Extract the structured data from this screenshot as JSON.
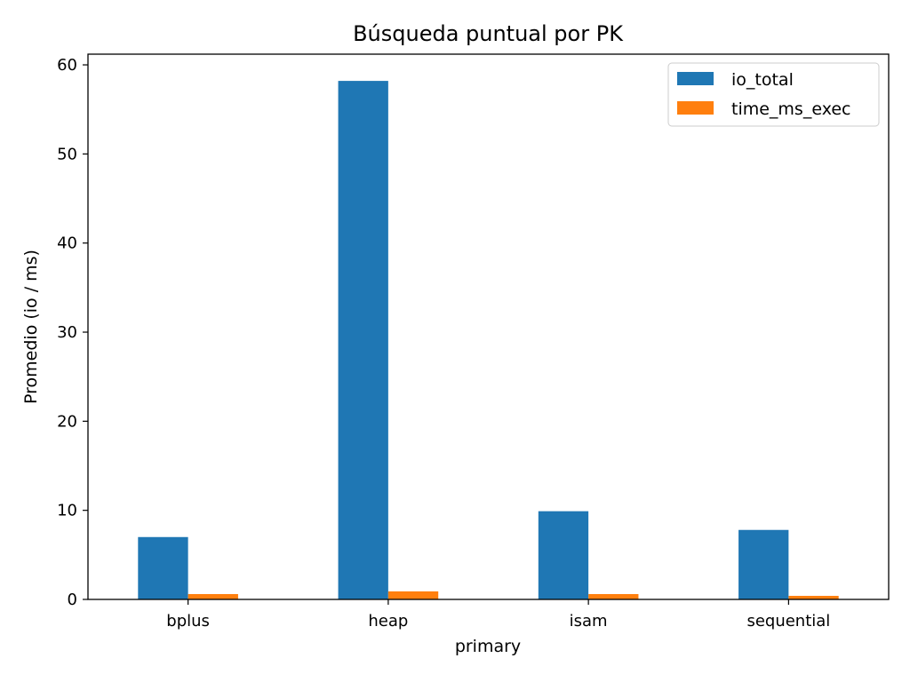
{
  "chart_data": {
    "type": "bar",
    "title": "Búsqueda puntual por PK",
    "xlabel": "primary",
    "ylabel": "Promedio (io / ms)",
    "categories": [
      "bplus",
      "heap",
      "isam",
      "sequential"
    ],
    "series": [
      {
        "name": "io_total",
        "color": "#1f77b4",
        "values": [
          7.0,
          58.2,
          9.9,
          7.8
        ]
      },
      {
        "name": "time_ms_exec",
        "color": "#ff7f0e",
        "values": [
          0.6,
          0.9,
          0.6,
          0.4
        ]
      }
    ],
    "ylim": [
      0,
      61.2
    ],
    "yticks": [
      0,
      10,
      20,
      30,
      40,
      50,
      60
    ],
    "grid": false,
    "legend_position": "top-right"
  }
}
